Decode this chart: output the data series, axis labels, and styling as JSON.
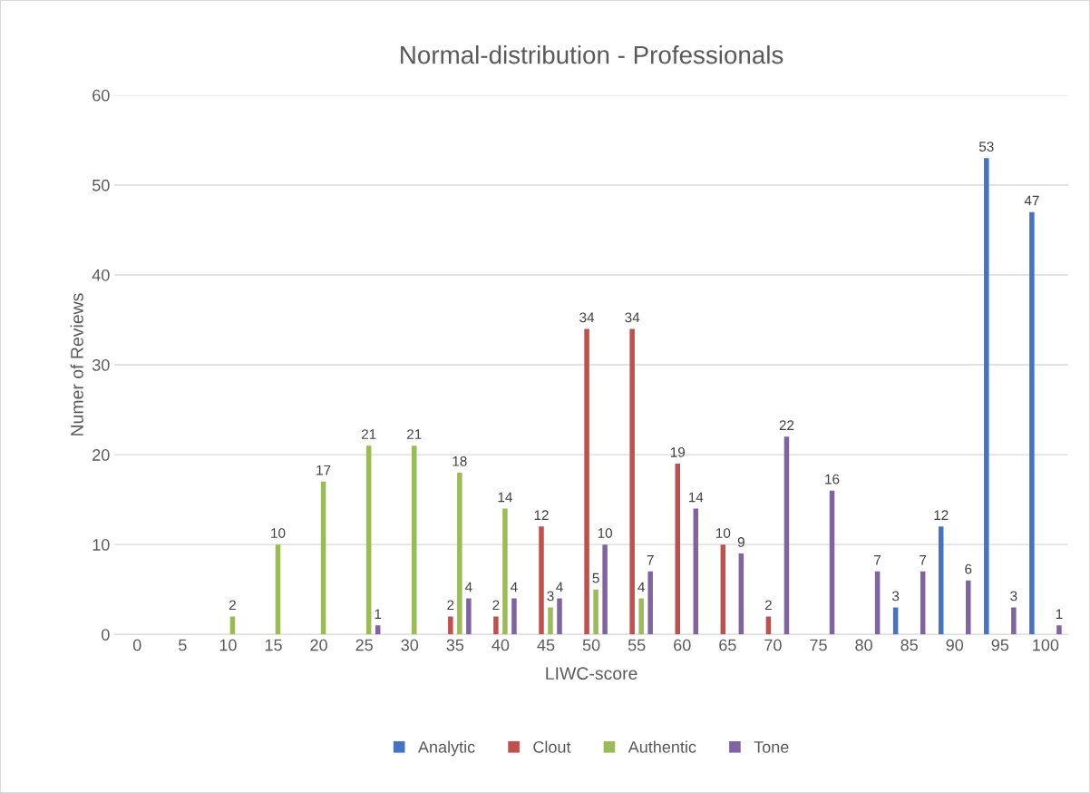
{
  "chart_data": {
    "type": "bar",
    "title": "Normal-distribution - Professionals",
    "xlabel": "LIWC-score",
    "ylabel": "Numer of Reviews",
    "categories": [
      "0",
      "5",
      "10",
      "15",
      "20",
      "25",
      "30",
      "35",
      "40",
      "45",
      "50",
      "55",
      "60",
      "65",
      "70",
      "75",
      "80",
      "85",
      "90",
      "95",
      "100"
    ],
    "series": [
      {
        "name": "Analytic",
        "color": "#4472c4",
        "values": [
          null,
          null,
          null,
          null,
          null,
          null,
          null,
          null,
          null,
          null,
          null,
          null,
          null,
          null,
          null,
          null,
          null,
          3,
          12,
          53,
          47
        ]
      },
      {
        "name": "Clout",
        "color": "#c0504d",
        "values": [
          null,
          null,
          null,
          null,
          null,
          null,
          null,
          2,
          2,
          12,
          34,
          34,
          19,
          10,
          2,
          null,
          null,
          null,
          null,
          null,
          null
        ]
      },
      {
        "name": "Authentic",
        "color": "#9bbb59",
        "values": [
          null,
          null,
          2,
          10,
          17,
          21,
          21,
          18,
          14,
          3,
          5,
          4,
          null,
          null,
          null,
          null,
          null,
          null,
          null,
          null,
          null
        ]
      },
      {
        "name": "Tone",
        "color": "#8064a2",
        "values": [
          null,
          null,
          null,
          null,
          null,
          1,
          null,
          4,
          4,
          4,
          10,
          7,
          14,
          9,
          22,
          16,
          7,
          7,
          6,
          3,
          1
        ]
      }
    ],
    "ylim": [
      0,
      60
    ],
    "yticks": [
      0,
      10,
      20,
      30,
      40,
      50,
      60
    ],
    "grid": "y",
    "legend": "bottom",
    "data_labels": true
  }
}
